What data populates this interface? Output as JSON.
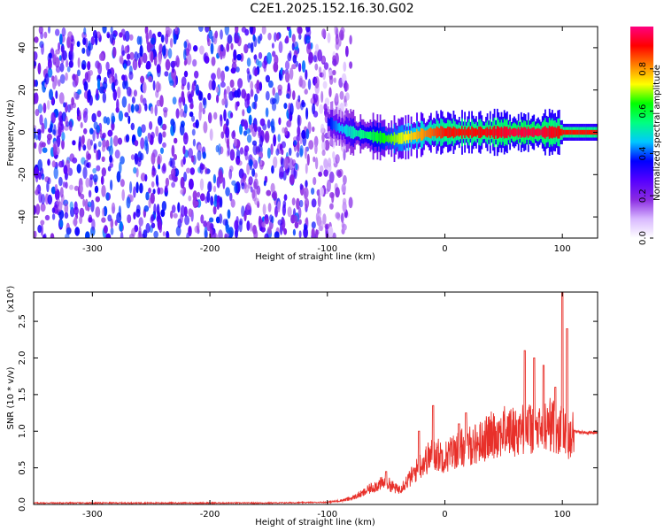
{
  "title": "C2E1.2025.152.16.30.G02",
  "chart_data": [
    {
      "type": "heatmap",
      "xlabel": "Height of straight line (km)",
      "ylabel": "Frequency (Hz)",
      "xlim": [
        -350,
        130
      ],
      "ylim": [
        -50,
        50
      ],
      "x_ticks": [
        "-300",
        "-200",
        "-100",
        "0",
        "100"
      ],
      "x_tick_values": [
        -300,
        -200,
        -100,
        0,
        100
      ],
      "y_ticks": [
        "-40",
        "-20",
        "0",
        "20",
        "40"
      ],
      "y_tick_values": [
        -40,
        -20,
        0,
        20,
        40
      ],
      "colorbar": {
        "label": "Normalized spectral amplitude",
        "range": [
          0,
          1
        ],
        "ticks": [
          "0.0",
          "0.2",
          "0.4",
          "0.6",
          "0.8"
        ],
        "tick_values": [
          0,
          0.2,
          0.4,
          0.6,
          0.8
        ],
        "colors": [
          "#ffffff",
          "#d8b8ff",
          "#8a2be2",
          "#5500ff",
          "#0000ff",
          "#00c8ff",
          "#00ff80",
          "#00ff00",
          "#ffff00",
          "#ff8000",
          "#ff0000",
          "#ff0080"
        ]
      },
      "noise_region_x": [
        -350,
        -80
      ],
      "signal_band": [
        {
          "x": -100,
          "freq": 5,
          "amp": 0.35
        },
        {
          "x": -90,
          "freq": 2,
          "amp": 0.45
        },
        {
          "x": -80,
          "freq": 0,
          "amp": 0.5
        },
        {
          "x": -70,
          "freq": -1,
          "amp": 0.55
        },
        {
          "x": -60,
          "freq": -2,
          "amp": 0.6
        },
        {
          "x": -50,
          "freq": -3,
          "amp": 0.65
        },
        {
          "x": -40,
          "freq": -3,
          "amp": 0.7
        },
        {
          "x": -30,
          "freq": -2,
          "amp": 0.75
        },
        {
          "x": -20,
          "freq": -1,
          "amp": 0.8
        },
        {
          "x": -10,
          "freq": 0,
          "amp": 0.85
        },
        {
          "x": 0,
          "freq": 0,
          "amp": 0.9
        },
        {
          "x": 20,
          "freq": 0,
          "amp": 0.9
        },
        {
          "x": 40,
          "freq": 0,
          "amp": 0.92
        },
        {
          "x": 60,
          "freq": 0,
          "amp": 0.95
        },
        {
          "x": 80,
          "freq": 0,
          "amp": 0.95
        },
        {
          "x": 100,
          "freq": 0,
          "amp": 0.9
        },
        {
          "x": 130,
          "freq": 0,
          "amp": 0.9
        }
      ]
    },
    {
      "type": "line",
      "xlabel": "Height of straight line (km)",
      "ylabel": "SNR (10 * v/v)",
      "y_multiplier": "(x10⁴)",
      "xlim": [
        -350,
        130
      ],
      "ylim": [
        0,
        2.9
      ],
      "x_ticks": [
        "-300",
        "-200",
        "-100",
        "0",
        "100"
      ],
      "x_tick_values": [
        -300,
        -200,
        -100,
        0,
        100
      ],
      "y_ticks": [
        "0.0",
        "0.5",
        "1.0",
        "1.5",
        "2.0",
        "2.5"
      ],
      "y_tick_values": [
        0,
        0.5,
        1.0,
        1.5,
        2.0,
        2.5
      ],
      "series": [
        {
          "color": "#e8302a",
          "x": [
            -350,
            -300,
            -250,
            -200,
            -150,
            -100,
            -90,
            -80,
            -70,
            -60,
            -50,
            -40,
            -30,
            -20,
            -10,
            0,
            10,
            20,
            30,
            40,
            50,
            60,
            70,
            80,
            90,
            100,
            105,
            110,
            120,
            130
          ],
          "y": [
            0.02,
            0.02,
            0.02,
            0.02,
            0.02,
            0.03,
            0.05,
            0.08,
            0.15,
            0.25,
            0.3,
            0.2,
            0.35,
            0.55,
            0.7,
            0.65,
            0.75,
            0.8,
            0.85,
            0.95,
            1.0,
            1.0,
            1.05,
            1.0,
            1.1,
            1.0,
            0.95,
            1.0,
            0.98,
            0.98
          ],
          "spikes": [
            {
              "x": -50,
              "y": 0.45
            },
            {
              "x": -22,
              "y": 1.0
            },
            {
              "x": -10,
              "y": 1.35
            },
            {
              "x": 12,
              "y": 1.1
            },
            {
              "x": 18,
              "y": 1.25
            },
            {
              "x": 68,
              "y": 2.1
            },
            {
              "x": 76,
              "y": 2.0
            },
            {
              "x": 84,
              "y": 1.9
            },
            {
              "x": 100,
              "y": 2.9
            },
            {
              "x": 104,
              "y": 2.4
            },
            {
              "x": 94,
              "y": 1.6
            }
          ]
        }
      ]
    }
  ]
}
